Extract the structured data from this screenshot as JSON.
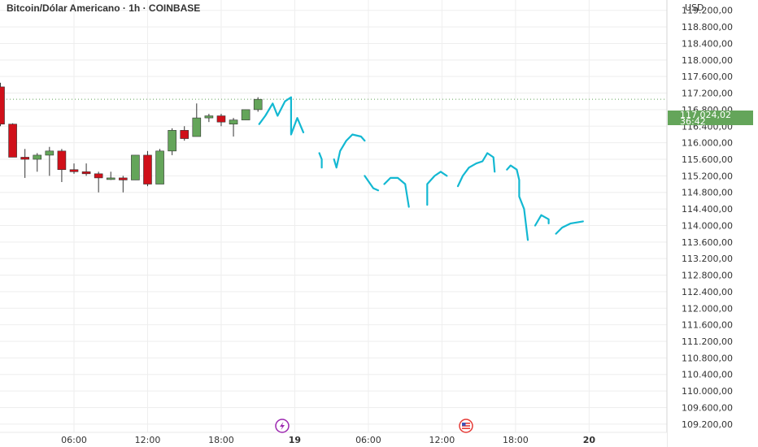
{
  "header": {
    "title": "Bitcoin/Dólar Americano · 1h · COINBASE"
  },
  "price_scale": {
    "currency": "USD",
    "current_price": "117.024,02",
    "countdown": "36:42"
  },
  "colors": {
    "up_candle": "#64a55a",
    "down_candle": "#d0101a",
    "drawing": "#13b8d2",
    "price_tag": "#64a55a",
    "grid": "#eeeeee",
    "event_flash": "#9c27b0",
    "event_flag": "#e53935"
  },
  "events": [
    {
      "icon": "lightning-icon",
      "x": "19"
    },
    {
      "icon": "us-flag-icon",
      "x": "12:00"
    }
  ],
  "chart_data": {
    "type": "candlestick",
    "title": "Bitcoin/Dólar Americano · 1h · COINBASE",
    "y_unit": "USD",
    "ylim": [
      109000,
      119450
    ],
    "y_ticks": [
      109200,
      109600,
      110000,
      110400,
      110800,
      111200,
      111600,
      112000,
      112400,
      112800,
      113200,
      113600,
      114000,
      114400,
      114800,
      115200,
      115600,
      116000,
      116400,
      116800,
      117200,
      117600,
      118000,
      118400,
      118800,
      119200
    ],
    "y_tick_labels": [
      "109.200,00",
      "109.600,00",
      "110.000,00",
      "110.400,00",
      "110.800,00",
      "111.200,00",
      "111.600,00",
      "112.000,00",
      "112.400,00",
      "112.800,00",
      "113.200,00",
      "113.600,00",
      "114.000,00",
      "114.400,00",
      "114.800,00",
      "115.200,00",
      "115.600,00",
      "116.000,00",
      "116.400,00",
      "116.800,00",
      "117.200,00",
      "117.600,00",
      "118.000,00",
      "118.400,00",
      "118.800,00",
      "119.200,00"
    ],
    "x_ticks": [
      {
        "t": 6,
        "label": "06:00"
      },
      {
        "t": 12,
        "label": "12:00"
      },
      {
        "t": 18,
        "label": "18:00"
      },
      {
        "t": 24,
        "label": "19"
      },
      {
        "t": 30,
        "label": "06:00"
      },
      {
        "t": 36,
        "label": "12:00"
      },
      {
        "t": 42,
        "label": "18:00"
      },
      {
        "t": 48,
        "label": "20"
      }
    ],
    "grid": true,
    "candles": [
      {
        "t": 0,
        "o": 117350,
        "h": 117450,
        "l": 116400,
        "c": 116450
      },
      {
        "t": 1,
        "o": 116450,
        "h": 116470,
        "l": 115650,
        "c": 115650
      },
      {
        "t": 2,
        "o": 115650,
        "h": 115850,
        "l": 115150,
        "c": 115600
      },
      {
        "t": 3,
        "o": 115600,
        "h": 115750,
        "l": 115300,
        "c": 115700
      },
      {
        "t": 4,
        "o": 115700,
        "h": 115900,
        "l": 115200,
        "c": 115800
      },
      {
        "t": 5,
        "o": 115800,
        "h": 115850,
        "l": 115050,
        "c": 115350
      },
      {
        "t": 6,
        "o": 115350,
        "h": 115500,
        "l": 115250,
        "c": 115300
      },
      {
        "t": 7,
        "o": 115300,
        "h": 115500,
        "l": 115200,
        "c": 115250
      },
      {
        "t": 8,
        "o": 115250,
        "h": 115300,
        "l": 114800,
        "c": 115150
      },
      {
        "t": 9,
        "o": 115150,
        "h": 115300,
        "l": 115100,
        "c": 115150
      },
      {
        "t": 10,
        "o": 115150,
        "h": 115200,
        "l": 114800,
        "c": 115100
      },
      {
        "t": 11,
        "o": 115100,
        "h": 115700,
        "l": 115100,
        "c": 115700
      },
      {
        "t": 12,
        "o": 115700,
        "h": 115800,
        "l": 114950,
        "c": 115000
      },
      {
        "t": 13,
        "o": 115000,
        "h": 115850,
        "l": 115000,
        "c": 115800
      },
      {
        "t": 14,
        "o": 115800,
        "h": 116350,
        "l": 115700,
        "c": 116300
      },
      {
        "t": 15,
        "o": 116300,
        "h": 116400,
        "l": 116050,
        "c": 116100
      },
      {
        "t": 16,
        "o": 116150,
        "h": 116950,
        "l": 116150,
        "c": 116600
      },
      {
        "t": 17,
        "o": 116600,
        "h": 116700,
        "l": 116500,
        "c": 116650
      },
      {
        "t": 18,
        "o": 116650,
        "h": 116700,
        "l": 116400,
        "c": 116500
      },
      {
        "t": 19,
        "o": 116450,
        "h": 116600,
        "l": 116150,
        "c": 116550
      },
      {
        "t": 20,
        "o": 116550,
        "h": 116800,
        "l": 116550,
        "c": 116800
      },
      {
        "t": 21,
        "o": 116800,
        "h": 117100,
        "l": 116750,
        "c": 117050
      }
    ],
    "drawing_path": [
      [
        21.1,
        116450
      ],
      [
        21.6,
        116650
      ],
      [
        22.2,
        116950
      ],
      [
        22.6,
        116650
      ],
      [
        23.2,
        117000
      ],
      [
        23.7,
        117100
      ],
      [
        23.7,
        116200
      ],
      [
        24.2,
        116600
      ],
      [
        24.7,
        116250
      ],
      [
        26.0,
        115750
      ],
      [
        26.2,
        115600
      ],
      [
        26.2,
        115400
      ],
      [
        27.2,
        115600
      ],
      [
        27.4,
        115400
      ],
      [
        27.7,
        115800
      ],
      [
        28.2,
        116050
      ],
      [
        28.7,
        116200
      ],
      [
        29.4,
        116150
      ],
      [
        29.7,
        116050
      ],
      [
        29.7,
        115200
      ],
      [
        30.4,
        114900
      ],
      [
        30.8,
        114850
      ],
      [
        31.3,
        115000
      ],
      [
        31.8,
        115150
      ],
      [
        32.4,
        115150
      ],
      [
        33.0,
        115000
      ],
      [
        33.3,
        114450
      ],
      [
        34.8,
        114500
      ],
      [
        34.8,
        115000
      ],
      [
        35.4,
        115200
      ],
      [
        35.9,
        115300
      ],
      [
        36.4,
        115200
      ],
      [
        37.3,
        114950
      ],
      [
        37.7,
        115200
      ],
      [
        38.2,
        115400
      ],
      [
        38.8,
        115500
      ],
      [
        39.3,
        115550
      ],
      [
        39.7,
        115750
      ],
      [
        40.2,
        115650
      ],
      [
        40.3,
        115300
      ],
      [
        41.3,
        115350
      ],
      [
        41.6,
        115450
      ],
      [
        42.1,
        115350
      ],
      [
        42.3,
        115100
      ],
      [
        42.3,
        114700
      ],
      [
        42.7,
        114400
      ],
      [
        43.0,
        113650
      ],
      [
        43.6,
        114000
      ],
      [
        44.1,
        114250
      ],
      [
        44.7,
        114150
      ],
      [
        44.7,
        114050
      ],
      [
        45.3,
        113800
      ],
      [
        45.8,
        113950
      ],
      [
        46.5,
        114050
      ],
      [
        47.5,
        114100
      ]
    ],
    "drawing_breaks": [
      9,
      12,
      19,
      22,
      27,
      32,
      40,
      47,
      51
    ]
  }
}
